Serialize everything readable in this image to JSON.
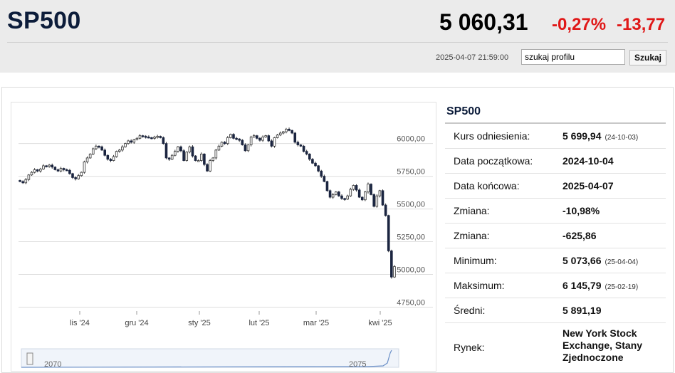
{
  "header": {
    "symbol": "SP500",
    "price": "5 060,31",
    "change_pct": "-0,27%",
    "change_abs": "-13,77",
    "timestamp": "2025-04-07 21:59:00",
    "search_value": "szukaj profilu",
    "search_button": "Szukaj"
  },
  "colors": {
    "down": "#e01818",
    "title": "#0c1c3a",
    "candle_dark": "#1b2540"
  },
  "chart_data": {
    "type": "candlestick",
    "y_ticks": [
      "6000,00",
      "5750,00",
      "5500,00",
      "5250,00",
      "5000,00",
      "4750,00"
    ],
    "y_tick_values": [
      6000,
      5750,
      5500,
      5250,
      5000,
      4750
    ],
    "x_ticks": [
      "lis '24",
      "gru '24",
      "sty '25",
      "lut '25",
      "mar '25",
      "kwi '25"
    ],
    "ylim": [
      4720,
      6270
    ],
    "grid": true,
    "navigator_labels": [
      "2070",
      "2075"
    ],
    "close": [
      5710,
      5700,
      5725,
      5760,
      5780,
      5800,
      5790,
      5805,
      5830,
      5825,
      5835,
      5820,
      5800,
      5790,
      5810,
      5800,
      5795,
      5770,
      5740,
      5730,
      5755,
      5780,
      5860,
      5890,
      5920,
      5960,
      5980,
      5975,
      5950,
      5910,
      5880,
      5870,
      5900,
      5940,
      5950,
      5975,
      6000,
      6020,
      6010,
      6030,
      6040,
      6060,
      6055,
      6050,
      6045,
      6040,
      6050,
      6055,
      6045,
      6000,
      5890,
      5880,
      5910,
      5940,
      5975,
      5945,
      5870,
      5935,
      5975,
      5905,
      5870,
      5870,
      5920,
      5840,
      5790,
      5870,
      5890,
      5950,
      5980,
      6010,
      6000,
      6045,
      6070,
      6040,
      6035,
      6025,
      5990,
      5945,
      5990,
      6050,
      6060,
      6040,
      6025,
      6050,
      6060,
      6020,
      5980,
      6045,
      6065,
      6080,
      6090,
      6110,
      6100,
      6080,
      6010,
      5990,
      5980,
      5940,
      5920,
      5880,
      5850,
      5830,
      5790,
      5750,
      5710,
      5640,
      5590,
      5610,
      5630,
      5600,
      5580,
      5575,
      5600,
      5650,
      5680,
      5645,
      5590,
      5570,
      5630,
      5690,
      5610,
      5520,
      5600,
      5640,
      5530,
      5450,
      5180,
      4980,
      5060
    ]
  },
  "info": {
    "title": "SP500",
    "rows": [
      {
        "label": "Kurs odniesienia:",
        "value": "5 699,94",
        "date": "(24-10-03)"
      },
      {
        "label": "Data początkowa:",
        "value": "2024-10-04",
        "date": ""
      },
      {
        "label": "Data końcowa:",
        "value": "2025-04-07",
        "date": ""
      },
      {
        "label": "Zmiana:",
        "value": "-10,98%",
        "date": ""
      },
      {
        "label": "Zmiana:",
        "value": "-625,86",
        "date": ""
      },
      {
        "label": "Minimum:",
        "value": "5 073,66",
        "date": "(25-04-04)"
      },
      {
        "label": "Maksimum:",
        "value": "6 145,79",
        "date": "(25-02-19)"
      },
      {
        "label": "Średni:",
        "value": "5 891,19",
        "date": ""
      }
    ],
    "market_label": "Rynek:",
    "market_value": "New York Stock Exchange, Stany Zjednoczone"
  }
}
